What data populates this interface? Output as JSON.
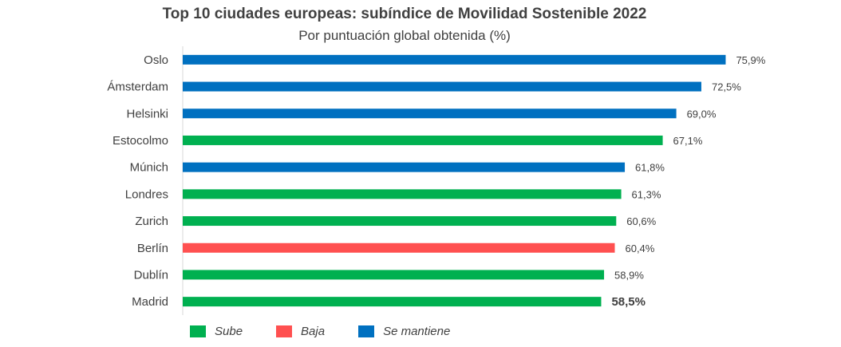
{
  "title": "Top 10 ciudades europeas: subíndice de Movilidad Sostenible 2022",
  "subtitle": "Por puntuación global obtenida (%)",
  "colors": {
    "sube": "#00B050",
    "baja": "#FF5050",
    "se_mantiene": "#0070C0"
  },
  "legend": [
    {
      "label": "Sube",
      "color": "#00B050"
    },
    {
      "label": "Baja",
      "color": "#FF5050"
    },
    {
      "label": "Se mantiene",
      "color": "#0070C0"
    }
  ],
  "chart_data": {
    "type": "bar",
    "orientation": "horizontal",
    "title": "Top 10 ciudades europeas: subíndice de Movilidad Sostenible 2022",
    "subtitle": "Por puntuación global obtenida (%)",
    "categories": [
      "Oslo",
      "Ámsterdam",
      "Helsinki",
      "Estocolmo",
      "Múnich",
      "Londres",
      "Zurich",
      "Berlín",
      "Dublín",
      "Madrid"
    ],
    "values": [
      75.9,
      72.5,
      69.0,
      67.1,
      61.8,
      61.3,
      60.6,
      60.4,
      58.9,
      58.5
    ],
    "value_labels": [
      "75,9%",
      "72,5%",
      "69,0%",
      "67,1%",
      "61,8%",
      "61,3%",
      "60,6%",
      "60,4%",
      "58,9%",
      "58,5%"
    ],
    "status": [
      "Se mantiene",
      "Se mantiene",
      "Se mantiene",
      "Sube",
      "Se mantiene",
      "Sube",
      "Sube",
      "Baja",
      "Sube",
      "Sube"
    ],
    "highlight": "Madrid",
    "xlim": [
      0,
      86
    ],
    "grid": false,
    "legend_position": "bottom"
  }
}
